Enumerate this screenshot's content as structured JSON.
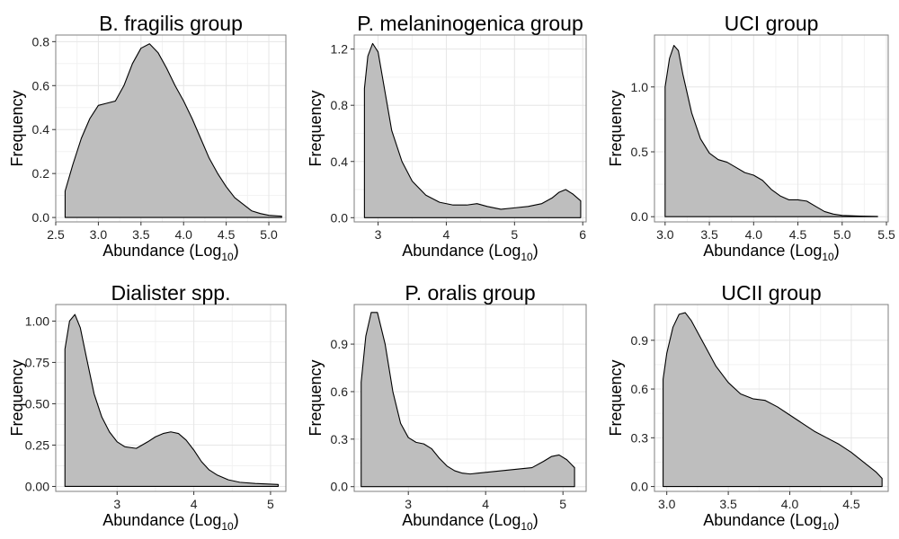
{
  "chart_data": [
    {
      "type": "area",
      "title": "B. fragilis group",
      "xlabel": "Abundance (Log",
      "xlabel_sub": "10",
      "xlabel_close": ")",
      "ylabel": "Frequency",
      "xlim": [
        2.5,
        5.2
      ],
      "ylim": [
        -0.02,
        0.83
      ],
      "xticks": [
        2.5,
        3.0,
        3.5,
        4.0,
        4.5,
        5.0
      ],
      "xtick_labels": [
        "2.5",
        "3.0",
        "3.5",
        "4.0",
        "4.5",
        "5.0"
      ],
      "yticks": [
        0.0,
        0.2,
        0.4,
        0.6,
        0.8
      ],
      "ytick_labels": [
        "0.0",
        "0.2",
        "0.4",
        "0.6",
        "0.8"
      ],
      "grid": true,
      "fill_color": "#bebebe",
      "line_color": "#000000",
      "x": [
        2.61,
        2.7,
        2.8,
        2.9,
        3.0,
        3.1,
        3.2,
        3.3,
        3.4,
        3.5,
        3.6,
        3.7,
        3.8,
        3.9,
        4.0,
        4.1,
        4.2,
        4.3,
        4.4,
        4.5,
        4.6,
        4.7,
        4.8,
        4.9,
        5.0,
        5.15
      ],
      "y": [
        0.12,
        0.24,
        0.36,
        0.45,
        0.51,
        0.52,
        0.53,
        0.6,
        0.7,
        0.77,
        0.79,
        0.75,
        0.68,
        0.6,
        0.53,
        0.45,
        0.36,
        0.27,
        0.2,
        0.14,
        0.09,
        0.06,
        0.03,
        0.018,
        0.01,
        0.006
      ]
    },
    {
      "type": "area",
      "title": "P. melaninogenica group",
      "xlabel": "Abundance (Log",
      "xlabel_sub": "10",
      "xlabel_close": ")",
      "ylabel": "Frequency",
      "xlim": [
        2.65,
        6.05
      ],
      "ylim": [
        -0.03,
        1.3
      ],
      "xticks": [
        3,
        4,
        5,
        6
      ],
      "xtick_labels": [
        "3",
        "4",
        "5",
        "6"
      ],
      "yticks": [
        0.0,
        0.4,
        0.8,
        1.2
      ],
      "ytick_labels": [
        "0.0",
        "0.4",
        "0.8",
        "1.2"
      ],
      "grid": true,
      "fill_color": "#bebebe",
      "line_color": "#000000",
      "x": [
        2.8,
        2.85,
        2.92,
        3.0,
        3.1,
        3.2,
        3.35,
        3.5,
        3.7,
        3.9,
        4.1,
        4.3,
        4.45,
        4.6,
        4.8,
        5.0,
        5.2,
        5.4,
        5.55,
        5.65,
        5.75,
        5.85,
        5.97
      ],
      "y": [
        0.92,
        1.15,
        1.24,
        1.18,
        0.9,
        0.62,
        0.4,
        0.26,
        0.16,
        0.11,
        0.09,
        0.09,
        0.1,
        0.08,
        0.06,
        0.07,
        0.08,
        0.1,
        0.14,
        0.18,
        0.2,
        0.17,
        0.12
      ]
    },
    {
      "type": "area",
      "title": "UCI group",
      "xlabel": "Abundance (Log",
      "xlabel_sub": "10",
      "xlabel_close": ")",
      "ylabel": "Frequency",
      "xlim": [
        2.88,
        5.52
      ],
      "ylim": [
        -0.04,
        1.4
      ],
      "xticks": [
        3.0,
        3.5,
        4.0,
        4.5,
        5.0,
        5.5
      ],
      "xtick_labels": [
        "3.0",
        "3.5",
        "4.0",
        "4.5",
        "5.0",
        "5.5"
      ],
      "yticks": [
        0.0,
        0.5,
        1.0
      ],
      "ytick_labels": [
        "0.0",
        "0.5",
        "1.0"
      ],
      "grid": true,
      "fill_color": "#bebebe",
      "line_color": "#000000",
      "x": [
        3.0,
        3.05,
        3.1,
        3.15,
        3.2,
        3.3,
        3.4,
        3.5,
        3.6,
        3.7,
        3.8,
        3.9,
        4.0,
        4.1,
        4.2,
        4.3,
        4.4,
        4.5,
        4.6,
        4.7,
        4.8,
        4.9,
        5.0,
        5.2,
        5.4
      ],
      "y": [
        1.0,
        1.22,
        1.32,
        1.28,
        1.1,
        0.8,
        0.6,
        0.49,
        0.44,
        0.42,
        0.38,
        0.34,
        0.32,
        0.28,
        0.21,
        0.16,
        0.13,
        0.13,
        0.12,
        0.08,
        0.04,
        0.02,
        0.01,
        0.005,
        0.002
      ]
    },
    {
      "type": "area",
      "title": "Dialister spp.",
      "xlabel": "Abundance (Log",
      "xlabel_sub": "10",
      "xlabel_close": ")",
      "ylabel": "Frequency",
      "xlim": [
        2.2,
        5.2
      ],
      "ylim": [
        -0.03,
        1.1
      ],
      "xticks": [
        3,
        4,
        5
      ],
      "xtick_labels": [
        "3",
        "4",
        "5"
      ],
      "yticks": [
        0.0,
        0.25,
        0.5,
        0.75,
        1.0
      ],
      "ytick_labels": [
        "0.00",
        "0.25",
        "0.50",
        "0.75",
        "1.00"
      ],
      "grid": true,
      "fill_color": "#bebebe",
      "line_color": "#000000",
      "x": [
        2.32,
        2.38,
        2.45,
        2.52,
        2.6,
        2.7,
        2.8,
        2.9,
        3.0,
        3.1,
        3.25,
        3.4,
        3.5,
        3.6,
        3.7,
        3.8,
        3.9,
        4.0,
        4.1,
        4.2,
        4.3,
        4.45,
        4.6,
        4.8,
        5.1
      ],
      "y": [
        0.83,
        1.0,
        1.04,
        0.96,
        0.78,
        0.56,
        0.42,
        0.33,
        0.27,
        0.24,
        0.23,
        0.27,
        0.3,
        0.32,
        0.33,
        0.32,
        0.28,
        0.22,
        0.15,
        0.1,
        0.07,
        0.04,
        0.025,
        0.018,
        0.012
      ]
    },
    {
      "type": "area",
      "title": "P. oralis group",
      "xlabel": "Abundance (Log",
      "xlabel_sub": "10",
      "xlabel_close": ")",
      "ylabel": "Frequency",
      "xlim": [
        2.3,
        5.3
      ],
      "ylim": [
        -0.03,
        1.15
      ],
      "xticks": [
        3,
        4,
        5
      ],
      "xtick_labels": [
        "3",
        "4",
        "5"
      ],
      "yticks": [
        0.0,
        0.3,
        0.6,
        0.9
      ],
      "ytick_labels": [
        "0.0",
        "0.3",
        "0.6",
        "0.9"
      ],
      "grid": true,
      "fill_color": "#bebebe",
      "line_color": "#000000",
      "x": [
        2.39,
        2.45,
        2.52,
        2.6,
        2.7,
        2.8,
        2.9,
        3.0,
        3.1,
        3.2,
        3.3,
        3.4,
        3.5,
        3.6,
        3.7,
        3.8,
        3.9,
        4.0,
        4.2,
        4.4,
        4.6,
        4.75,
        4.85,
        4.95,
        5.05,
        5.15
      ],
      "y": [
        0.66,
        0.95,
        1.1,
        1.1,
        0.9,
        0.6,
        0.4,
        0.31,
        0.28,
        0.27,
        0.24,
        0.18,
        0.13,
        0.1,
        0.085,
        0.08,
        0.085,
        0.09,
        0.1,
        0.11,
        0.12,
        0.16,
        0.19,
        0.2,
        0.17,
        0.12
      ]
    },
    {
      "type": "area",
      "title": "UCII group",
      "xlabel": "Abundance (Log",
      "xlabel_sub": "10",
      "xlabel_close": ")",
      "ylabel": "Frequency",
      "xlim": [
        2.9,
        4.8
      ],
      "ylim": [
        -0.03,
        1.12
      ],
      "xticks": [
        3.0,
        3.5,
        4.0,
        4.5
      ],
      "xtick_labels": [
        "3.0",
        "3.5",
        "4.0",
        "4.5"
      ],
      "yticks": [
        0.0,
        0.3,
        0.6,
        0.9
      ],
      "ytick_labels": [
        "0.0",
        "0.3",
        "0.6",
        "0.9"
      ],
      "grid": true,
      "fill_color": "#bebebe",
      "line_color": "#000000",
      "x": [
        2.97,
        3.0,
        3.05,
        3.1,
        3.15,
        3.2,
        3.3,
        3.4,
        3.5,
        3.6,
        3.7,
        3.8,
        3.9,
        4.0,
        4.1,
        4.2,
        4.3,
        4.4,
        4.5,
        4.6,
        4.7,
        4.75
      ],
      "y": [
        0.66,
        0.82,
        0.98,
        1.06,
        1.07,
        1.02,
        0.88,
        0.74,
        0.64,
        0.57,
        0.54,
        0.53,
        0.49,
        0.44,
        0.39,
        0.34,
        0.3,
        0.26,
        0.21,
        0.15,
        0.09,
        0.05
      ]
    }
  ]
}
